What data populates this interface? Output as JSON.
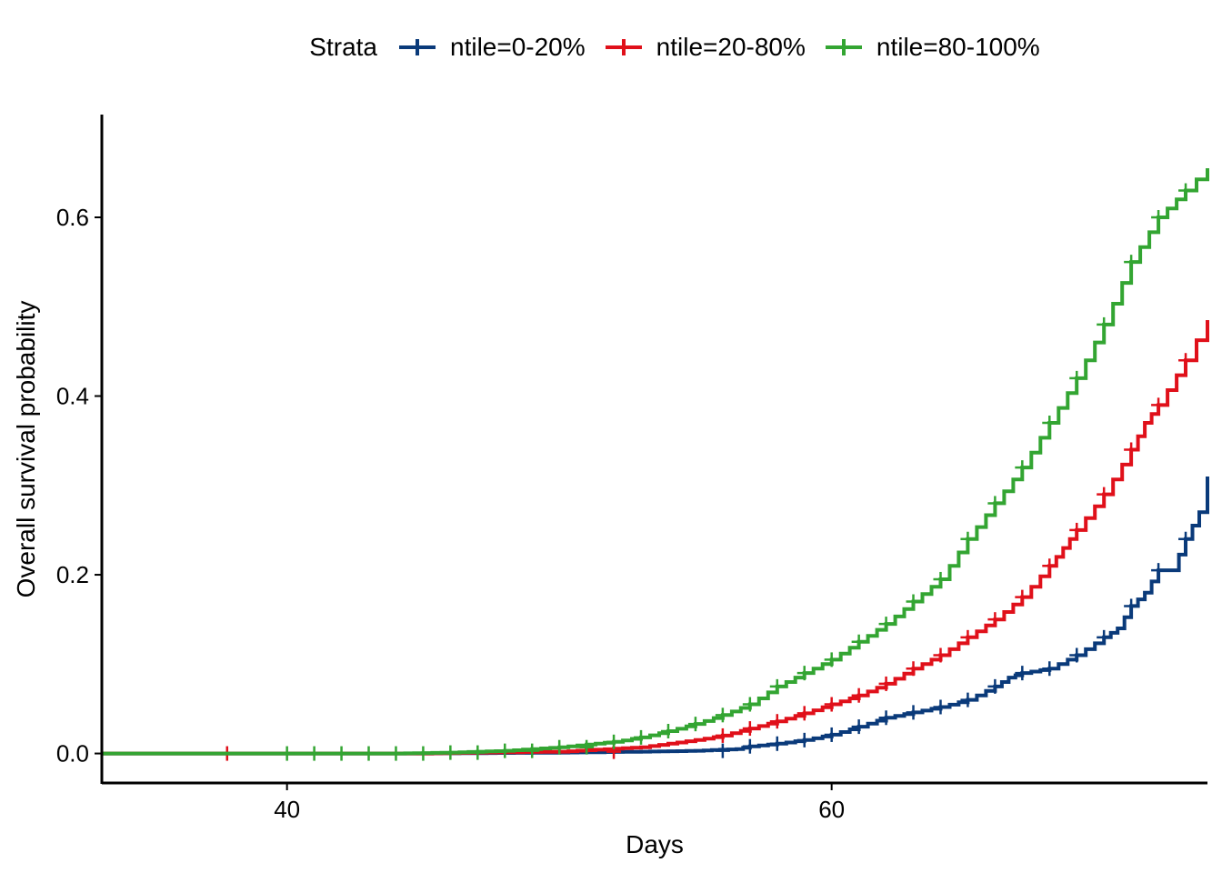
{
  "legend": {
    "title": "Strata",
    "items": [
      {
        "label": "ntile=0-20%",
        "color": "#0a3a7a"
      },
      {
        "label": "ntile=20-80%",
        "color": "#e0101a"
      },
      {
        "label": "ntile=80-100%",
        "color": "#33a532"
      }
    ]
  },
  "chart_data": {
    "type": "line",
    "step": true,
    "xlabel": "Days",
    "ylabel": "Overall survival probability",
    "xlim": [
      33.2,
      73.8
    ],
    "ylim": [
      -0.033,
      0.715
    ],
    "xticks": [
      40,
      60
    ],
    "yticks": [
      0.0,
      0.2,
      0.4,
      0.6
    ],
    "ytick_labels": [
      "0.0",
      "0.2",
      "0.4",
      "0.6"
    ],
    "grid": false,
    "legend_position": "top",
    "series": [
      {
        "name": "ntile=0-20%",
        "color": "#0a3a7a",
        "points": [
          [
            33.2,
            0
          ],
          [
            45,
            0
          ],
          [
            50,
            0.001
          ],
          [
            53,
            0.002
          ],
          [
            55,
            0.003
          ],
          [
            56.5,
            0.005
          ],
          [
            57,
            0.008
          ],
          [
            58,
            0.011
          ],
          [
            59,
            0.015
          ],
          [
            60,
            0.021
          ],
          [
            61,
            0.03
          ],
          [
            62,
            0.04
          ],
          [
            63,
            0.046
          ],
          [
            64,
            0.052
          ],
          [
            65,
            0.06
          ],
          [
            66,
            0.075
          ],
          [
            66.5,
            0.085
          ],
          [
            67,
            0.09
          ],
          [
            68,
            0.095
          ],
          [
            69,
            0.11
          ],
          [
            70,
            0.13
          ],
          [
            70.5,
            0.14
          ],
          [
            71,
            0.165
          ],
          [
            71.5,
            0.18
          ],
          [
            72,
            0.205
          ],
          [
            72.5,
            0.205
          ],
          [
            73,
            0.24
          ],
          [
            73.5,
            0.27
          ],
          [
            73.8,
            0.31
          ]
        ],
        "censor_x": [
          56,
          57,
          58,
          59,
          60,
          61,
          62,
          63,
          64,
          65,
          66,
          67,
          68,
          69,
          70,
          71,
          72,
          73
        ]
      },
      {
        "name": "ntile=20-80%",
        "color": "#e0101a",
        "points": [
          [
            33.2,
            0
          ],
          [
            45,
            0
          ],
          [
            47,
            0.001
          ],
          [
            50,
            0.002
          ],
          [
            53,
            0.007
          ],
          [
            55,
            0.015
          ],
          [
            56,
            0.02
          ],
          [
            57,
            0.028
          ],
          [
            58,
            0.036
          ],
          [
            59,
            0.045
          ],
          [
            60,
            0.055
          ],
          [
            61,
            0.065
          ],
          [
            62,
            0.078
          ],
          [
            63,
            0.095
          ],
          [
            64,
            0.11
          ],
          [
            65,
            0.13
          ],
          [
            66,
            0.15
          ],
          [
            67,
            0.175
          ],
          [
            68,
            0.21
          ],
          [
            68.5,
            0.23
          ],
          [
            69,
            0.25
          ],
          [
            70,
            0.29
          ],
          [
            71,
            0.34
          ],
          [
            71.5,
            0.37
          ],
          [
            72,
            0.39
          ],
          [
            73,
            0.44
          ],
          [
            73.8,
            0.485
          ]
        ],
        "censor_x": [
          37.8,
          52,
          56,
          57,
          58,
          59,
          60,
          61,
          62,
          63,
          64,
          65,
          66,
          67,
          68,
          69,
          70,
          71,
          72,
          73
        ]
      },
      {
        "name": "ntile=80-100%",
        "color": "#33a532",
        "points": [
          [
            33.2,
            0
          ],
          [
            44,
            0
          ],
          [
            46,
            0.001
          ],
          [
            48,
            0.003
          ],
          [
            50,
            0.007
          ],
          [
            52,
            0.013
          ],
          [
            53,
            0.018
          ],
          [
            54,
            0.025
          ],
          [
            55,
            0.033
          ],
          [
            56,
            0.043
          ],
          [
            57,
            0.055
          ],
          [
            58,
            0.075
          ],
          [
            59,
            0.09
          ],
          [
            60,
            0.105
          ],
          [
            61,
            0.125
          ],
          [
            62,
            0.145
          ],
          [
            63,
            0.17
          ],
          [
            64,
            0.195
          ],
          [
            65,
            0.24
          ],
          [
            66,
            0.28
          ],
          [
            67,
            0.32
          ],
          [
            68,
            0.37
          ],
          [
            69,
            0.42
          ],
          [
            70,
            0.48
          ],
          [
            71,
            0.55
          ],
          [
            72,
            0.6
          ],
          [
            73,
            0.63
          ],
          [
            73.8,
            0.655
          ]
        ],
        "censor_x": [
          40,
          41,
          42,
          43,
          44,
          45,
          46,
          47,
          48,
          49,
          50,
          51,
          52,
          53,
          54,
          55,
          56,
          57,
          58,
          59,
          60,
          61,
          62,
          63,
          64,
          65,
          66,
          67,
          68,
          69,
          70,
          71,
          72,
          73
        ]
      }
    ]
  }
}
